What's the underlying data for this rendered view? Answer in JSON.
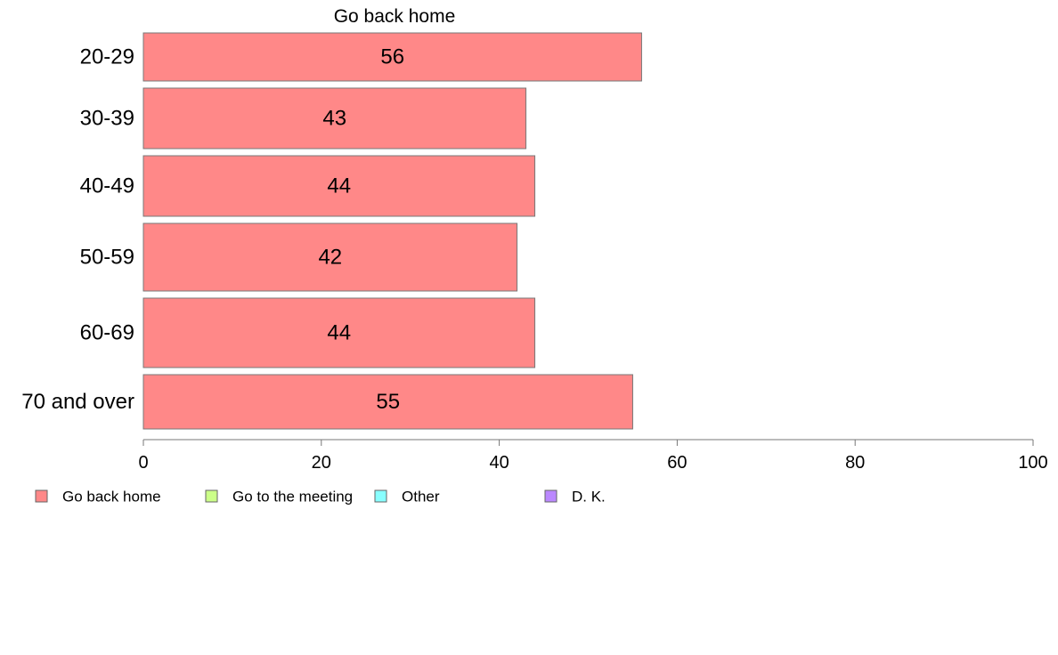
{
  "chart_data": {
    "type": "bar",
    "orientation": "horizontal",
    "title": "Go back home",
    "categories": [
      "20-29",
      "30-39",
      "40-49",
      "50-59",
      "60-69",
      "70 and over"
    ],
    "series": [
      {
        "name": "Go back home",
        "values": [
          56,
          43,
          44,
          42,
          44,
          55
        ],
        "color": "#FF8888"
      }
    ],
    "xlim": [
      0,
      100
    ],
    "x_ticks": [
      0,
      20,
      40,
      60,
      80,
      100
    ],
    "grid": false,
    "legend": {
      "placement": "bottom-left",
      "entries": [
        {
          "label": "Go back home",
          "color": "#FF8888"
        },
        {
          "label": "Go to the meeting",
          "color": "#CCFF88"
        },
        {
          "label": "Other",
          "color": "#88FFFF"
        },
        {
          "label": "D. K.",
          "color": "#BB88FF"
        }
      ]
    }
  }
}
